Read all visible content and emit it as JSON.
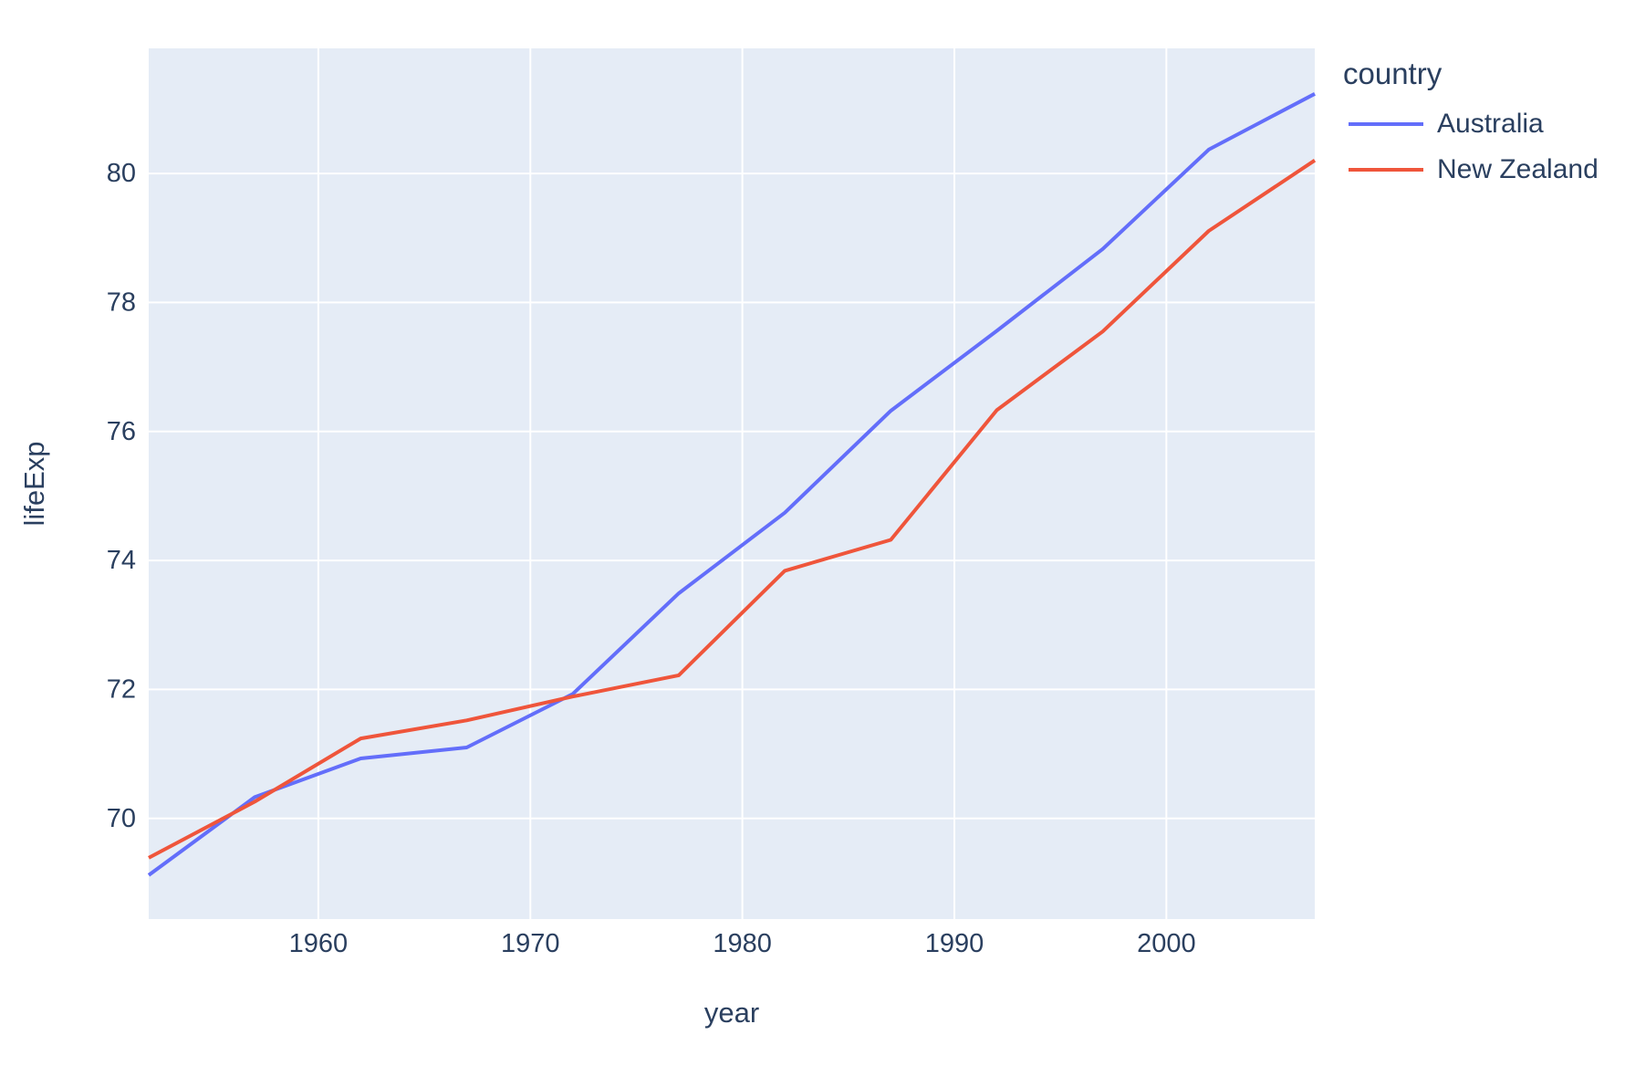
{
  "figure": {
    "paper_bgcolor": "#ffffff",
    "plot_bgcolor": "#e5ecf6",
    "grid_color": "#ffffff",
    "text_color": "#2a3f5f",
    "legend": {
      "title": "country",
      "items": [
        {
          "label": "Australia",
          "color": "#636efa"
        },
        {
          "label": "New Zealand",
          "color": "#ef553b"
        }
      ]
    }
  },
  "chart_data": {
    "type": "line",
    "title": "",
    "xlabel": "year",
    "ylabel": "lifeExp",
    "x": [
      1952,
      1957,
      1962,
      1967,
      1972,
      1977,
      1982,
      1987,
      1992,
      1997,
      2002,
      2007
    ],
    "series": [
      {
        "name": "Australia",
        "color": "#636efa",
        "values": [
          69.12,
          70.33,
          70.93,
          71.1,
          71.93,
          73.49,
          74.74,
          76.32,
          77.56,
          78.83,
          80.37,
          81.235
        ]
      },
      {
        "name": "New Zealand",
        "color": "#ef553b",
        "values": [
          69.39,
          70.26,
          71.24,
          71.52,
          71.89,
          72.22,
          73.84,
          74.32,
          76.33,
          77.55,
          79.11,
          80.204
        ]
      }
    ],
    "xlim": [
      1952,
      2007
    ],
    "ylim": [
      68.44,
      81.94
    ],
    "xticks": [
      1960,
      1970,
      1980,
      1990,
      2000
    ],
    "yticks": [
      70,
      72,
      74,
      76,
      78,
      80
    ],
    "grid": true,
    "legend_position": "top-right-outside"
  }
}
